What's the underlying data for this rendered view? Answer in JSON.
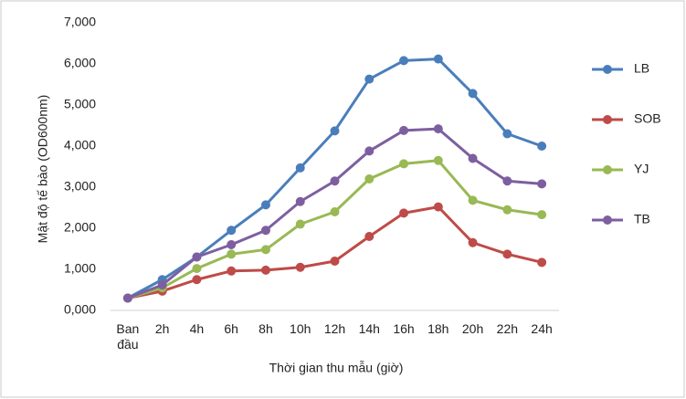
{
  "chart_data": {
    "type": "line",
    "y_label": "Mật độ tế bào (OD600nm)",
    "x_label": "Thời gian thu mẫu (giờ)",
    "categories": [
      "Ban đầu",
      "2h",
      "4h",
      "6h",
      "8h",
      "10h",
      "12h",
      "14h",
      "16h",
      "18h",
      "20h",
      "22h",
      "24h"
    ],
    "series": [
      {
        "name": "LB",
        "color": "#4a7ebb",
        "values": [
          0.3,
          0.75,
          1.3,
          1.95,
          2.57,
          3.47,
          4.37,
          5.63,
          6.08,
          6.12,
          5.28,
          4.3,
          4.0
        ]
      },
      {
        "name": "SOB",
        "color": "#be4b48",
        "values": [
          0.3,
          0.47,
          0.75,
          0.96,
          0.98,
          1.05,
          1.2,
          1.8,
          2.37,
          2.52,
          1.65,
          1.37,
          1.17
        ]
      },
      {
        "name": "YJ",
        "color": "#98b954",
        "values": [
          0.3,
          0.55,
          1.02,
          1.37,
          1.48,
          2.1,
          2.4,
          3.2,
          3.57,
          3.65,
          2.68,
          2.45,
          2.33
        ]
      },
      {
        "name": "TB",
        "color": "#7d5fa0",
        "values": [
          0.3,
          0.62,
          1.3,
          1.6,
          1.95,
          2.65,
          3.15,
          3.88,
          4.38,
          4.42,
          3.7,
          3.15,
          3.08
        ]
      }
    ],
    "ylim": [
      0,
      7
    ],
    "yticks": [
      {
        "value": 0,
        "label": "0,000"
      },
      {
        "value": 1,
        "label": "1,000"
      },
      {
        "value": 2,
        "label": "2,000"
      },
      {
        "value": 3,
        "label": "3,000"
      },
      {
        "value": 4,
        "label": "4,000"
      },
      {
        "value": 5,
        "label": "5,000"
      },
      {
        "value": 6,
        "label": "6,000"
      },
      {
        "value": 7,
        "label": "7,000"
      }
    ],
    "grid": false,
    "legend": "right"
  }
}
